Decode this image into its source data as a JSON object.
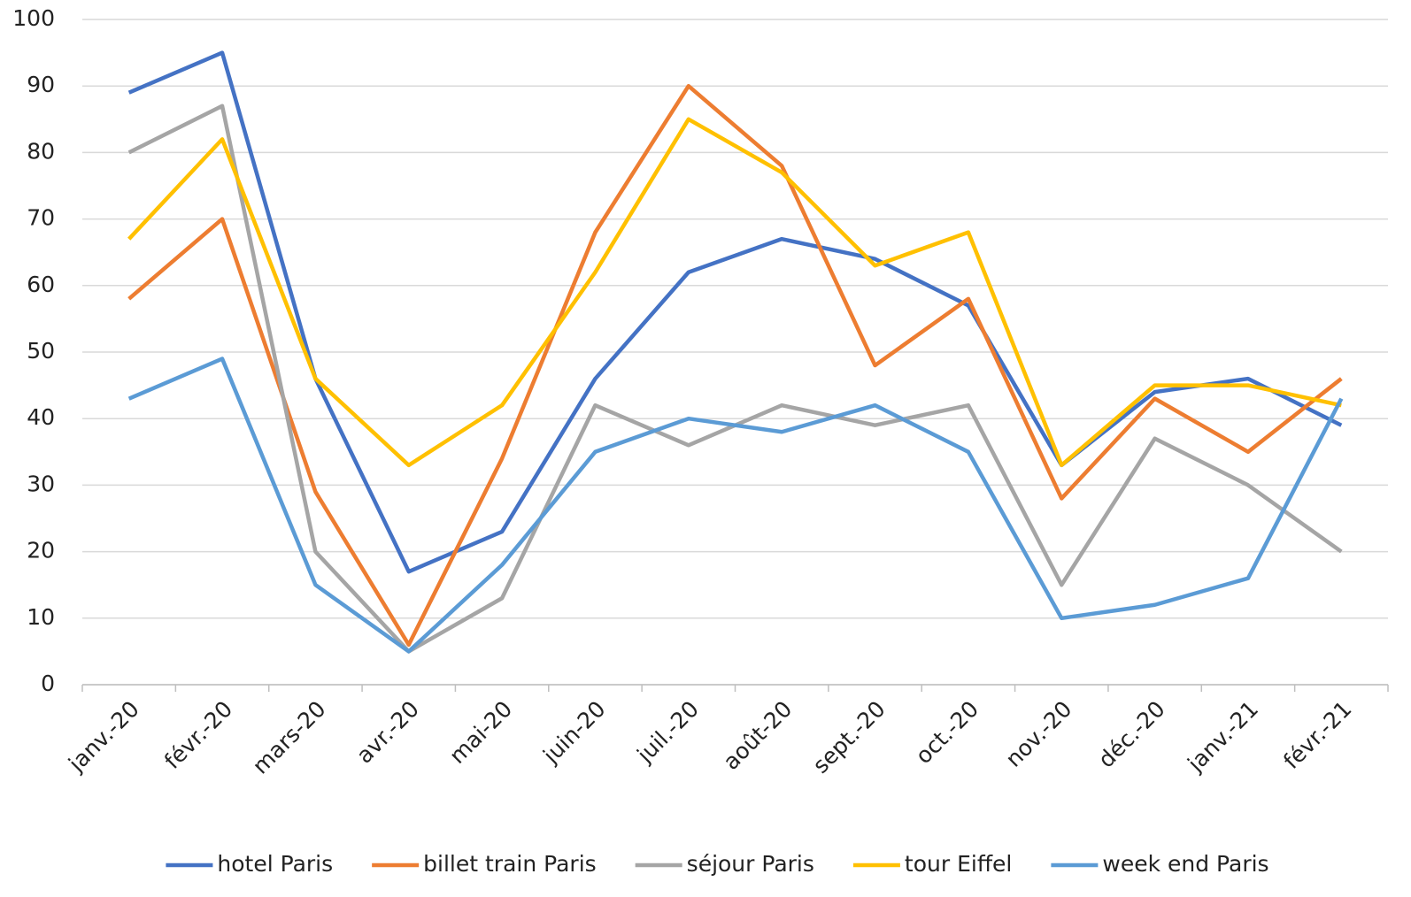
{
  "chart_data": {
    "type": "line",
    "categories": [
      "janv.-20",
      "févr.-20",
      "mars-20",
      "avr.-20",
      "mai-20",
      "juin-20",
      "juil.-20",
      "août-20",
      "sept.-20",
      "oct.-20",
      "nov.-20",
      "déc.-20",
      "janv.-21",
      "févr.-21"
    ],
    "series": [
      {
        "name": "hotel Paris",
        "color": "#4472c4",
        "values": [
          89,
          95,
          46,
          17,
          23,
          46,
          62,
          67,
          64,
          57,
          33,
          44,
          46,
          39
        ]
      },
      {
        "name": "billet train Paris",
        "color": "#ed7d31",
        "values": [
          58,
          70,
          29,
          6,
          34,
          68,
          90,
          78,
          48,
          58,
          28,
          43,
          35,
          46
        ]
      },
      {
        "name": "séjour Paris",
        "color": "#a5a5a5",
        "values": [
          80,
          87,
          20,
          5,
          13,
          42,
          36,
          42,
          39,
          42,
          15,
          37,
          30,
          20
        ]
      },
      {
        "name": "tour Eiffel",
        "color": "#ffc000",
        "values": [
          67,
          82,
          46,
          33,
          42,
          62,
          85,
          77,
          63,
          68,
          33,
          45,
          45,
          42
        ]
      },
      {
        "name": "week end Paris",
        "color": "#5b9bd5",
        "values": [
          43,
          49,
          15,
          5,
          18,
          35,
          40,
          38,
          42,
          35,
          10,
          12,
          16,
          43
        ]
      }
    ],
    "ylim": [
      0,
      100
    ],
    "yticks": [
      0,
      10,
      20,
      30,
      40,
      50,
      60,
      70,
      80,
      90,
      100
    ],
    "grid": true,
    "legend": "bottom"
  }
}
